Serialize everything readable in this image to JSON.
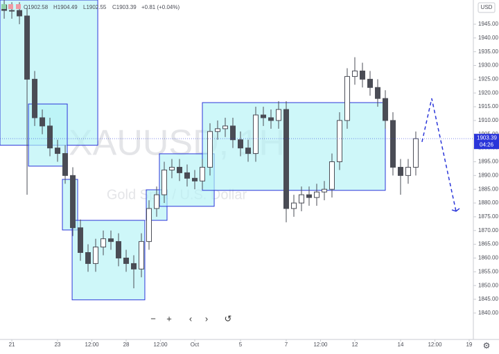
{
  "chart_data": {
    "type": "candlestick",
    "symbol_title": "XAUUSD, 1H",
    "symbol_description": "Gold Spot / U.S. Dollar",
    "currency": "USD",
    "header": {
      "open": "O1902.58",
      "high": "H1904.49",
      "low": "L1902.55",
      "close": "C1903.39",
      "change": "+0.81 (+0.04%)"
    },
    "last_price": {
      "value": 1903.39,
      "label": "1903.39"
    },
    "countdown": "04:26",
    "color": "#4a4c55",
    "x": [
      -8,
      0,
      8,
      16,
      24,
      32,
      40,
      48,
      56,
      64,
      72,
      80,
      88,
      96,
      104,
      112,
      120,
      128,
      136,
      144,
      152,
      160,
      168,
      176,
      184,
      192,
      200,
      208,
      216,
      224,
      232,
      240,
      248,
      256,
      264,
      272,
      280,
      288,
      296,
      304,
      312,
      320,
      328,
      336,
      344,
      352,
      360,
      368,
      376,
      384,
      392,
      400,
      408,
      416,
      424
    ],
    "open": [
      1952,
      1950,
      1950,
      1948,
      1925,
      1911,
      1908,
      1900,
      1898,
      1890,
      1871,
      1862,
      1858,
      1864,
      1867,
      1866,
      1860,
      1858,
      1856,
      1866,
      1878,
      1883,
      1892,
      1893,
      1891,
      1889,
      1888,
      1893,
      1906,
      1907,
      1908,
      1903,
      1900,
      1898,
      1912,
      1911,
      1910,
      1914,
      1878,
      1880,
      1883,
      1882,
      1884,
      1885,
      1895,
      1910,
      1926,
      1928,
      1925,
      1922,
      1918,
      1910,
      1893,
      1890,
      1893
    ],
    "high": [
      1955,
      1953,
      1953,
      1951,
      1928,
      1914,
      1911,
      1903,
      1901,
      1893,
      1874,
      1865,
      1867,
      1870,
      1870,
      1869,
      1863,
      1861,
      1869,
      1881,
      1886,
      1895,
      1896,
      1896,
      1894,
      1892,
      1896,
      1909,
      1910,
      1911,
      1911,
      1906,
      1903,
      1915,
      1915,
      1914,
      1917,
      1917,
      1883,
      1886,
      1886,
      1887,
      1888,
      1898,
      1913,
      1929,
      1933,
      1931,
      1928,
      1925,
      1921,
      1913,
      1896,
      1896,
      1906
    ],
    "low": [
      1947,
      1947,
      1945,
      1883,
      1908,
      1905,
      1897,
      1895,
      1887,
      1868,
      1859,
      1855,
      1855,
      1861,
      1863,
      1857,
      1855,
      1849,
      1853,
      1863,
      1875,
      1880,
      1889,
      1888,
      1886,
      1885,
      1885,
      1890,
      1903,
      1904,
      1900,
      1897,
      1895,
      1895,
      1908,
      1907,
      1907,
      1873,
      1875,
      1877,
      1879,
      1879,
      1881,
      1882,
      1892,
      1907,
      1923,
      1922,
      1919,
      1915,
      1907,
      1890,
      1883,
      1887,
      1890
    ],
    "close": [
      1950,
      1950,
      1948,
      1925,
      1911,
      1908,
      1900,
      1898,
      1890,
      1871,
      1862,
      1858,
      1864,
      1867,
      1866,
      1860,
      1858,
      1856,
      1866,
      1878,
      1883,
      1892,
      1893,
      1891,
      1889,
      1888,
      1893,
      1906,
      1907,
      1908,
      1903,
      1900,
      1898,
      1912,
      1911,
      1910,
      1914,
      1878,
      1880,
      1883,
      1882,
      1884,
      1885,
      1895,
      1910,
      1926,
      1928,
      1925,
      1922,
      1918,
      1910,
      1893,
      1890,
      1893,
      1903.39
    ],
    "rectangles": [
      {
        "x": [
          -12.4,
          90.2
        ],
        "y": [
          1901,
          1953.8
        ]
      },
      {
        "x": [
          17.5,
          58.2
        ],
        "y": [
          1893.4,
          1916
        ]
      },
      {
        "x": [
          53.1,
          69.1
        ],
        "y": [
          1870.2,
          1888.6
        ]
      },
      {
        "x": [
          63.3,
          139.6
        ],
        "y": [
          1844.8,
          1873.7
        ]
      },
      {
        "x": [
          141.1,
          162.9
        ],
        "y": [
          1873.7,
          1884.8
        ]
      },
      {
        "x": [
          154.9,
          212.4
        ],
        "y": [
          1878.8,
          1897.9
        ]
      },
      {
        "x": [
          200,
          392
        ],
        "y": [
          1884.6,
          1916.5
        ]
      }
    ],
    "forecast_path": {
      "x": [
        430.5,
        440.7,
        466.2
      ],
      "y": [
        1902.2,
        1918,
        1877
      ]
    },
    "xlim": [
      -12.4,
      484.4
    ],
    "ylim": [
      1830.4,
      1953.8
    ],
    "xticks": [
      {
        "value": 0,
        "label": "21"
      },
      {
        "value": 48,
        "label": "23"
      },
      {
        "value": 84,
        "label": "12:00"
      },
      {
        "value": 120,
        "label": "28"
      },
      {
        "value": 156,
        "label": "12:00"
      },
      {
        "value": 192,
        "label": "Oct"
      },
      {
        "value": 240,
        "label": "5"
      },
      {
        "value": 288,
        "label": "7"
      },
      {
        "value": 324,
        "label": "12:00"
      },
      {
        "value": 360,
        "label": "12"
      },
      {
        "value": 408,
        "label": "14"
      },
      {
        "value": 444,
        "label": "12:00"
      },
      {
        "value": 480,
        "label": "19"
      }
    ],
    "yticks": [
      {
        "value": 1840,
        "label": "1840.00"
      },
      {
        "value": 1845,
        "label": "1845.00"
      },
      {
        "value": 1850,
        "label": "1850.00"
      },
      {
        "value": 1855,
        "label": "1855.00"
      },
      {
        "value": 1860,
        "label": "1860.00"
      },
      {
        "value": 1865,
        "label": "1865.00"
      },
      {
        "value": 1870,
        "label": "1870.00"
      },
      {
        "value": 1875,
        "label": "1875.00"
      },
      {
        "value": 1880,
        "label": "1880.00"
      },
      {
        "value": 1885,
        "label": "1885.00"
      },
      {
        "value": 1890,
        "label": "1890.00"
      },
      {
        "value": 1895,
        "label": "1895.00"
      },
      {
        "value": 1900,
        "label": "1900.00"
      },
      {
        "value": 1905,
        "label": "1905.00"
      },
      {
        "value": 1910,
        "label": "1910.00"
      },
      {
        "value": 1915,
        "label": "1915.00"
      },
      {
        "value": 1920,
        "label": "1920.00"
      },
      {
        "value": 1925,
        "label": "1925.00"
      },
      {
        "value": 1930,
        "label": "1930.00"
      },
      {
        "value": 1935,
        "label": "1935.00"
      },
      {
        "value": 1940,
        "label": "1940.00"
      },
      {
        "value": 1945,
        "label": "1945.00"
      }
    ]
  }
}
